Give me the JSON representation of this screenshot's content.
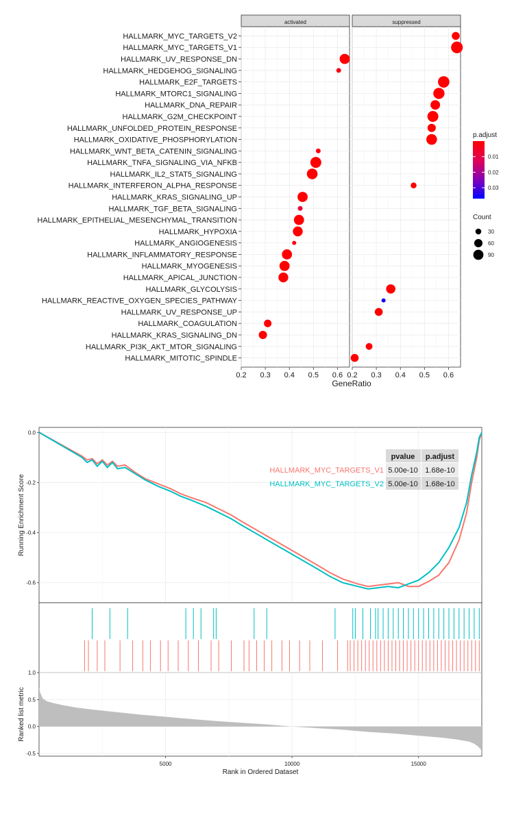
{
  "chart_data": [
    {
      "type": "scatter",
      "subtype": "faceted-dotplot",
      "xlabel": "GeneRatio",
      "ylabel": "",
      "facets": [
        "activated",
        "suppressed"
      ],
      "activated": {
        "xlim": [
          0.2,
          0.65
        ],
        "xticks": [
          "0.2",
          "0.3",
          "0.4",
          "0.5",
          "0.6"
        ],
        "xtick_values": [
          0.2,
          0.3,
          0.4,
          0.5,
          0.6
        ]
      },
      "suppressed": {
        "xlim": [
          0.2,
          0.65
        ],
        "xticks": [
          "0.2",
          "0.3",
          "0.4",
          "0.5",
          "0.6"
        ],
        "xtick_values": [
          0.2,
          0.3,
          0.4,
          0.5,
          0.6
        ]
      },
      "pathways": [
        "HALLMARK_MYC_TARGETS_V2",
        "HALLMARK_MYC_TARGETS_V1",
        "HALLMARK_UV_RESPONSE_DN",
        "HALLMARK_HEDGEHOG_SIGNALING",
        "HALLMARK_E2F_TARGETS",
        "HALLMARK_MTORC1_SIGNALING",
        "HALLMARK_DNA_REPAIR",
        "HALLMARK_G2M_CHECKPOINT",
        "HALLMARK_UNFOLDED_PROTEIN_RESPONSE",
        "HALLMARK_OXIDATIVE_PHOSPHORYLATION",
        "HALLMARK_WNT_BETA_CATENIN_SIGNALING",
        "HALLMARK_TNFA_SIGNALING_VIA_NFKB",
        "HALLMARK_IL2_STAT5_SIGNALING",
        "HALLMARK_INTERFERON_ALPHA_RESPONSE",
        "HALLMARK_KRAS_SIGNALING_UP",
        "HALLMARK_TGF_BETA_SIGNALING",
        "HALLMARK_EPITHELIAL_MESENCHYMAL_TRANSITION",
        "HALLMARK_HYPOXIA",
        "HALLMARK_ANGIOGENESIS",
        "HALLMARK_INFLAMMATORY_RESPONSE",
        "HALLMARK_MYOGENESIS",
        "HALLMARK_APICAL_JUNCTION",
        "HALLMARK_GLYCOLYSIS",
        "HALLMARK_REACTIVE_OXYGEN_SPECIES_PATHWAY",
        "HALLMARK_UV_RESPONSE_UP",
        "HALLMARK_COAGULATION",
        "HALLMARK_KRAS_SIGNALING_DN",
        "HALLMARK_PI3K_AKT_MTOR_SIGNALING",
        "HALLMARK_MITOTIC_SPINDLE"
      ],
      "points": [
        {
          "pathway": "HALLMARK_MYC_TARGETS_V2",
          "facet": "suppressed",
          "x": 0.63,
          "count": 55,
          "padj": 0.0001
        },
        {
          "pathway": "HALLMARK_MYC_TARGETS_V1",
          "facet": "suppressed",
          "x": 0.635,
          "count": 120,
          "padj": 0.0001
        },
        {
          "pathway": "HALLMARK_UV_RESPONSE_DN",
          "facet": "activated",
          "x": 0.63,
          "count": 90,
          "padj": 0.0001
        },
        {
          "pathway": "HALLMARK_HEDGEHOG_SIGNALING",
          "facet": "activated",
          "x": 0.605,
          "count": 20,
          "padj": 0.003
        },
        {
          "pathway": "HALLMARK_E2F_TARGETS",
          "facet": "suppressed",
          "x": 0.58,
          "count": 115,
          "padj": 0.0001
        },
        {
          "pathway": "HALLMARK_MTORC1_SIGNALING",
          "facet": "suppressed",
          "x": 0.56,
          "count": 110,
          "padj": 0.0001
        },
        {
          "pathway": "HALLMARK_DNA_REPAIR",
          "facet": "suppressed",
          "x": 0.545,
          "count": 80,
          "padj": 0.0001
        },
        {
          "pathway": "HALLMARK_G2M_CHECKPOINT",
          "facet": "suppressed",
          "x": 0.535,
          "count": 105,
          "padj": 0.0001
        },
        {
          "pathway": "HALLMARK_UNFOLDED_PROTEIN_RESPONSE",
          "facet": "suppressed",
          "x": 0.53,
          "count": 60,
          "padj": 0.0001
        },
        {
          "pathway": "HALLMARK_OXIDATIVE_PHOSPHORYLATION",
          "facet": "suppressed",
          "x": 0.53,
          "count": 100,
          "padj": 0.0001
        },
        {
          "pathway": "HALLMARK_WNT_BETA_CATENIN_SIGNALING",
          "facet": "activated",
          "x": 0.52,
          "count": 20,
          "padj": 0.002
        },
        {
          "pathway": "HALLMARK_TNFA_SIGNALING_VIA_NFKB",
          "facet": "activated",
          "x": 0.51,
          "count": 105,
          "padj": 0.0001
        },
        {
          "pathway": "HALLMARK_IL2_STAT5_SIGNALING",
          "facet": "activated",
          "x": 0.495,
          "count": 100,
          "padj": 0.0005
        },
        {
          "pathway": "HALLMARK_INTERFERON_ALPHA_RESPONSE",
          "facet": "suppressed",
          "x": 0.455,
          "count": 30,
          "padj": 0.001
        },
        {
          "pathway": "HALLMARK_KRAS_SIGNALING_UP",
          "facet": "activated",
          "x": 0.455,
          "count": 90,
          "padj": 0.0001
        },
        {
          "pathway": "HALLMARK_TGF_BETA_SIGNALING",
          "facet": "activated",
          "x": 0.445,
          "count": 20,
          "padj": 0.008
        },
        {
          "pathway": "HALLMARK_EPITHELIAL_MESENCHYMAL_TRANSITION",
          "facet": "activated",
          "x": 0.44,
          "count": 90,
          "padj": 0.0001
        },
        {
          "pathway": "HALLMARK_HYPOXIA",
          "facet": "activated",
          "x": 0.435,
          "count": 85,
          "padj": 0.0001
        },
        {
          "pathway": "HALLMARK_ANGIOGENESIS",
          "facet": "activated",
          "x": 0.42,
          "count": 15,
          "padj": 0.003
        },
        {
          "pathway": "HALLMARK_INFLAMMATORY_RESPONSE",
          "facet": "activated",
          "x": 0.39,
          "count": 90,
          "padj": 0.0001
        },
        {
          "pathway": "HALLMARK_MYOGENESIS",
          "facet": "activated",
          "x": 0.38,
          "count": 90,
          "padj": 0.0001
        },
        {
          "pathway": "HALLMARK_APICAL_JUNCTION",
          "facet": "activated",
          "x": 0.375,
          "count": 85,
          "padj": 0.0001
        },
        {
          "pathway": "HALLMARK_GLYCOLYSIS",
          "facet": "suppressed",
          "x": 0.36,
          "count": 75,
          "padj": 0.0001
        },
        {
          "pathway": "HALLMARK_REACTIVE_OXYGEN_SPECIES_PATHWAY",
          "facet": "suppressed",
          "x": 0.33,
          "count": 15,
          "padj": 0.035
        },
        {
          "pathway": "HALLMARK_UV_RESPONSE_UP",
          "facet": "suppressed",
          "x": 0.31,
          "count": 55,
          "padj": 0.0001
        },
        {
          "pathway": "HALLMARK_COAGULATION",
          "facet": "activated",
          "x": 0.31,
          "count": 50,
          "padj": 0.0001
        },
        {
          "pathway": "HALLMARK_KRAS_SIGNALING_DN",
          "facet": "activated",
          "x": 0.29,
          "count": 60,
          "padj": 0.0001
        },
        {
          "pathway": "HALLMARK_PI3K_AKT_MTOR_SIGNALING",
          "facet": "suppressed",
          "x": 0.27,
          "count": 40,
          "padj": 0.0005
        },
        {
          "pathway": "HALLMARK_MITOTIC_SPINDLE",
          "facet": "suppressed",
          "x": 0.21,
          "count": 55,
          "padj": 0.0001
        }
      ],
      "legend_padj": {
        "title": "p.adjust",
        "labels": [
          "0.01",
          "0.02",
          "0.03"
        ],
        "values": [
          0.01,
          0.02,
          0.03
        ],
        "range": [
          0.0,
          0.037
        ],
        "low_color": "#ff0000",
        "high_color": "#0000ff"
      },
      "legend_count": {
        "title": "Count",
        "labels": [
          "30",
          "60",
          "90"
        ],
        "values": [
          30,
          60,
          90
        ]
      }
    },
    {
      "type": "line",
      "subtype": "gsea-enrichment-plot",
      "ylabel": "Running Enrichment Score",
      "xlabel": "Rank in Ordered Dataset",
      "xlim": [
        0,
        17500
      ],
      "ylim": [
        -0.68,
        0.02
      ],
      "yticks": [
        "0.0",
        "-0.2",
        "-0.4",
        "-0.6"
      ],
      "ytick_values": [
        0.0,
        -0.2,
        -0.4,
        -0.6
      ],
      "series": [
        {
          "name": "HALLMARK_MYC_TARGETS_V1",
          "color": "#f8766d",
          "pvalue": "5.00e-10",
          "p_adjust": "1.68e-10",
          "x": [
            0,
            1700,
            1900,
            2100,
            2300,
            2500,
            2700,
            2900,
            3100,
            3400,
            3800,
            4200,
            4700,
            5200,
            5600,
            6000,
            6600,
            7100,
            7600,
            8000,
            8600,
            9200,
            9800,
            10400,
            11000,
            11500,
            12000,
            12600,
            13000,
            13400,
            13800,
            14200,
            14600,
            15000,
            15400,
            15800,
            16200,
            16600,
            16900,
            17100,
            17300,
            17400,
            17500
          ],
          "y": [
            0.0,
            -0.095,
            -0.11,
            -0.105,
            -0.125,
            -0.11,
            -0.13,
            -0.115,
            -0.135,
            -0.13,
            -0.16,
            -0.185,
            -0.205,
            -0.225,
            -0.245,
            -0.26,
            -0.28,
            -0.305,
            -0.33,
            -0.355,
            -0.39,
            -0.425,
            -0.46,
            -0.495,
            -0.53,
            -0.56,
            -0.585,
            -0.605,
            -0.615,
            -0.61,
            -0.605,
            -0.6,
            -0.615,
            -0.615,
            -0.595,
            -0.57,
            -0.52,
            -0.43,
            -0.32,
            -0.2,
            -0.1,
            -0.03,
            0.0
          ]
        },
        {
          "name": "HALLMARK_MYC_TARGETS_V2",
          "color": "#00bfc4",
          "pvalue": "5.00e-10",
          "p_adjust": "1.68e-10",
          "x": [
            0,
            1700,
            1900,
            2100,
            2300,
            2500,
            2700,
            2900,
            3100,
            3400,
            3800,
            4200,
            4700,
            5200,
            5600,
            6000,
            6600,
            7100,
            7600,
            8000,
            8600,
            9200,
            9800,
            10400,
            11000,
            11500,
            12000,
            12600,
            13000,
            13400,
            13800,
            14200,
            14600,
            15000,
            15400,
            15800,
            16200,
            16600,
            16900,
            17100,
            17300,
            17400,
            17500
          ],
          "y": [
            0.0,
            -0.1,
            -0.12,
            -0.11,
            -0.135,
            -0.115,
            -0.14,
            -0.12,
            -0.145,
            -0.14,
            -0.165,
            -0.19,
            -0.215,
            -0.235,
            -0.255,
            -0.27,
            -0.295,
            -0.32,
            -0.345,
            -0.37,
            -0.405,
            -0.44,
            -0.475,
            -0.51,
            -0.545,
            -0.575,
            -0.6,
            -0.615,
            -0.625,
            -0.62,
            -0.615,
            -0.62,
            -0.605,
            -0.59,
            -0.56,
            -0.52,
            -0.46,
            -0.38,
            -0.28,
            -0.17,
            -0.08,
            -0.02,
            0.0
          ]
        }
      ],
      "hits_v2": [
        2100,
        2800,
        3500,
        5800,
        6100,
        6400,
        6900,
        7000,
        8500,
        9000,
        11700,
        12400,
        12500,
        12800,
        13100,
        13300,
        13400,
        13600,
        13800,
        14000,
        14200,
        14400,
        14600,
        14800,
        15000,
        15200,
        15400,
        15600,
        15800,
        16000,
        16200,
        16400,
        16600,
        16800,
        17000,
        17200,
        17400
      ],
      "hits_v1": [
        1800,
        1950,
        2300,
        2600,
        3200,
        3700,
        4100,
        4400,
        4800,
        5100,
        5500,
        5900,
        6300,
        6800,
        7100,
        7600,
        8100,
        8300,
        8600,
        8900,
        9200,
        9600,
        9900,
        10300,
        10700,
        11200,
        11800,
        12200,
        12300,
        12450,
        12600,
        12750,
        12900,
        13050,
        13200,
        13350,
        13500,
        13650,
        13800,
        13950,
        14100,
        14250,
        14400,
        14550,
        14700,
        14850,
        15000,
        15150,
        15300,
        15450,
        15600,
        15750,
        15900,
        16050,
        16200,
        16350,
        16500,
        16650,
        16800,
        16950,
        17100,
        17250,
        17400
      ]
    },
    {
      "type": "area",
      "subtype": "ranked-list-metric",
      "ylabel": "Ranked list metric",
      "xlabel": "Rank in Ordered Dataset",
      "xlim": [
        0,
        17500
      ],
      "ylim": [
        -0.55,
        1.0
      ],
      "yticks": [
        "1.0",
        "0.5",
        "0.0",
        "-0.5"
      ],
      "ytick_values": [
        1.0,
        0.5,
        0.0,
        -0.5
      ],
      "xticks": [
        "5000",
        "10000",
        "15000"
      ],
      "xtick_values": [
        5000,
        10000,
        15000
      ],
      "x": [
        0,
        50,
        150,
        300,
        600,
        1000,
        1500,
        2000,
        3000,
        4000,
        5000,
        6000,
        7000,
        8000,
        9000,
        10000,
        11000,
        12000,
        13000,
        14000,
        15000,
        16000,
        16500,
        17000,
        17200,
        17350,
        17450,
        17500
      ],
      "y": [
        0.72,
        0.62,
        0.52,
        0.47,
        0.43,
        0.39,
        0.35,
        0.32,
        0.27,
        0.22,
        0.18,
        0.14,
        0.1,
        0.07,
        0.04,
        0.0,
        -0.03,
        -0.06,
        -0.1,
        -0.13,
        -0.17,
        -0.21,
        -0.24,
        -0.28,
        -0.32,
        -0.37,
        -0.42,
        -0.48
      ],
      "fill_color": "#bebebe"
    }
  ]
}
